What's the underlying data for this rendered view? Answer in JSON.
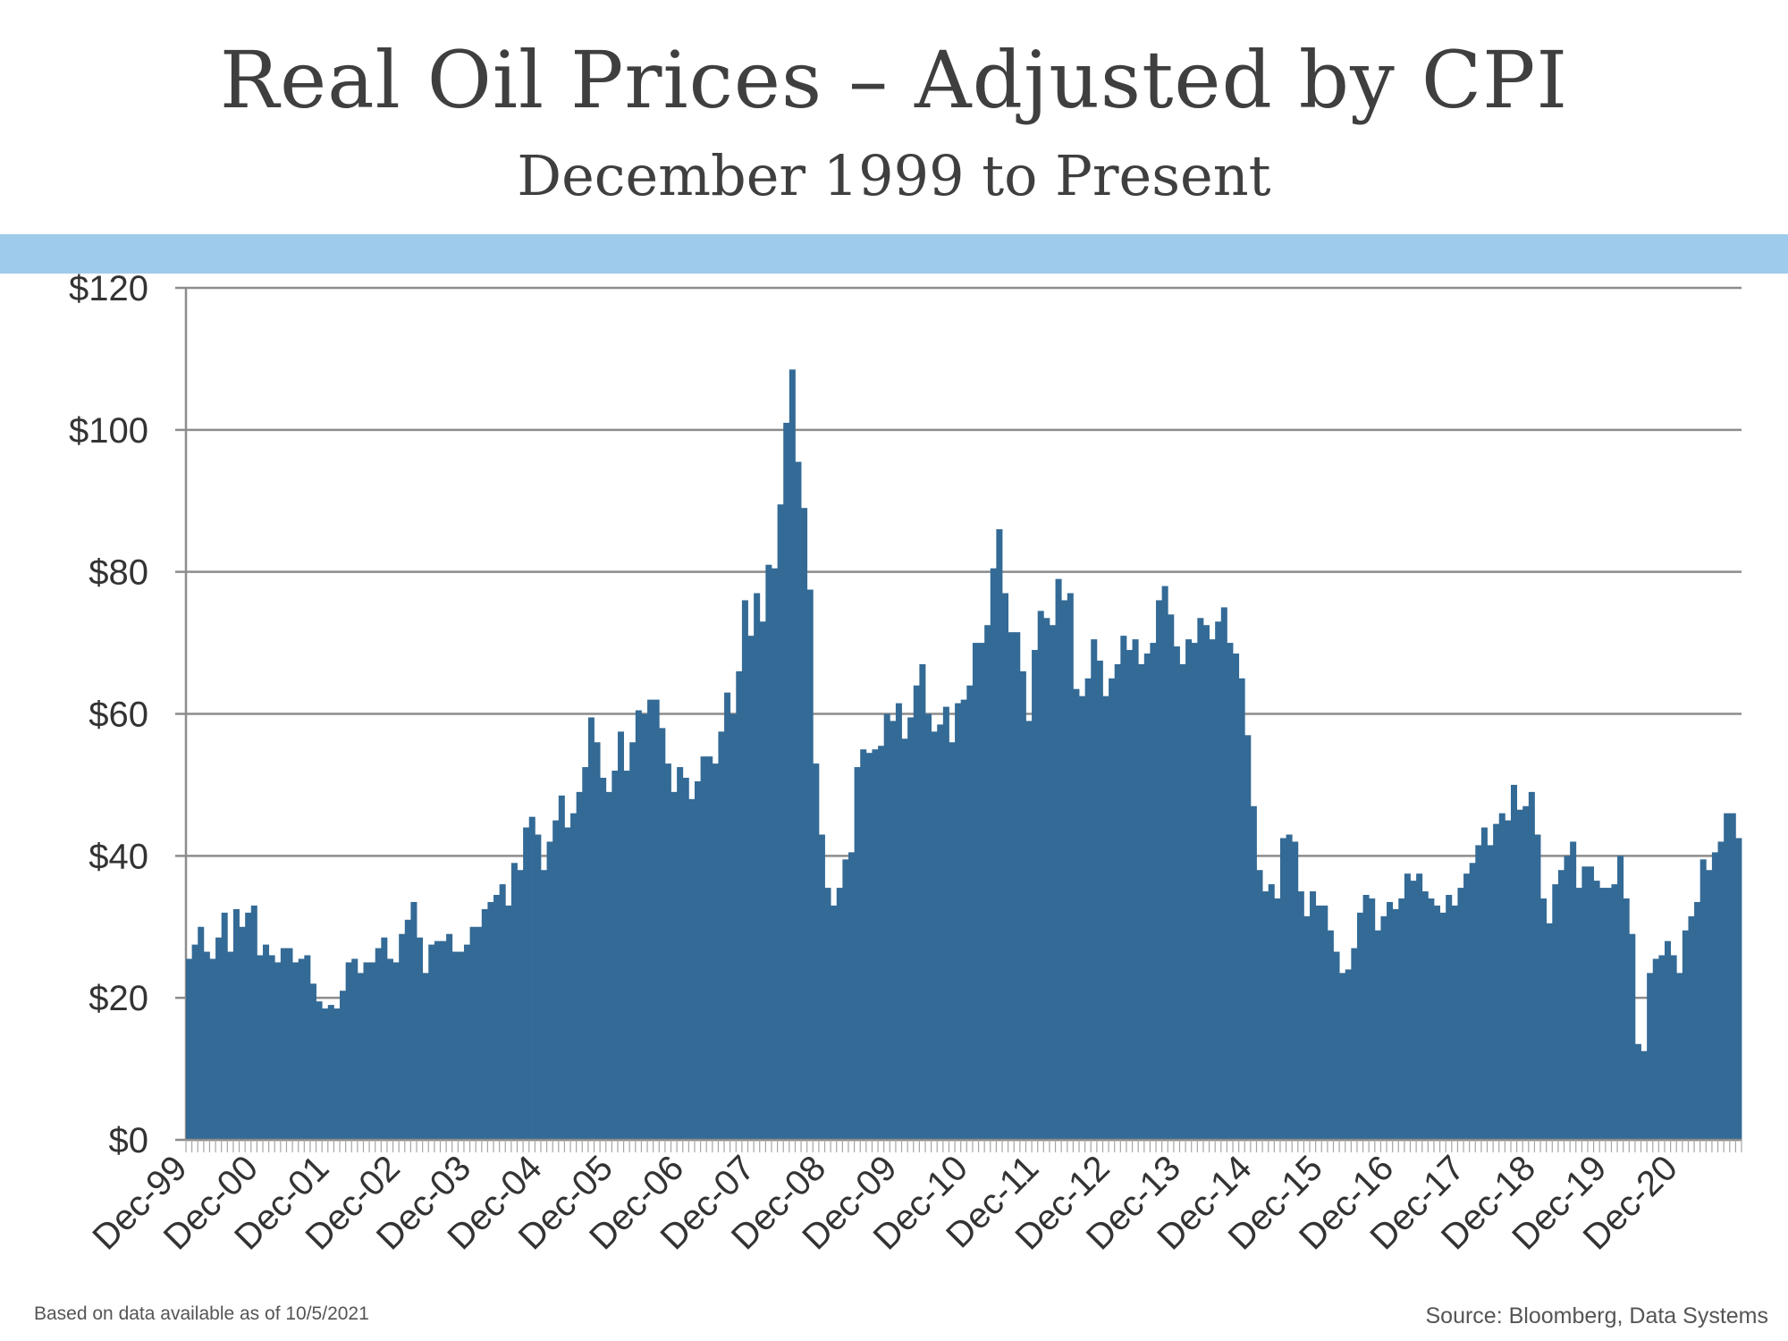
{
  "header": {
    "title": "Real Oil Prices – Adjusted by CPI",
    "subtitle": "December 1999 to Present"
  },
  "footer": {
    "note": "Based on data available as of 10/5/2021",
    "source": "Source:  Bloomberg, Data Systems"
  },
  "colors": {
    "bars": "#336a96",
    "band": "#9ecbeb",
    "grid": "#8c8c8c"
  },
  "chart_data": {
    "type": "bar",
    "title": "Real Oil Prices – Adjusted by CPI",
    "subtitle": "December 1999 to Present",
    "xlabel": "",
    "ylabel": "",
    "ylim": [
      0,
      120
    ],
    "yticks": [
      0,
      20,
      40,
      60,
      80,
      100,
      120
    ],
    "ytick_labels": [
      "$0",
      "$20",
      "$40",
      "$60",
      "$80",
      "$100",
      "$120"
    ],
    "grid": true,
    "legend": "none",
    "xtick_labels": [
      "Dec-99",
      "Dec-00",
      "Dec-01",
      "Dec-02",
      "Dec-03",
      "Dec-04",
      "Dec-05",
      "Dec-06",
      "Dec-07",
      "Dec-08",
      "Dec-09",
      "Dec-10",
      "Dec-11",
      "Dec-12",
      "Dec-13",
      "Dec-14",
      "Dec-15",
      "Dec-16",
      "Dec-17",
      "Dec-18",
      "Dec-19",
      "Dec-20"
    ],
    "series": [
      {
        "frequency": "monthly",
        "start": "Dec-99",
        "values": [
          25.5,
          27.5,
          30,
          26.5,
          25.5,
          28.5,
          32,
          26.5,
          32.5,
          30,
          32,
          33,
          26,
          27.5,
          26,
          25,
          27,
          27,
          25,
          25.5,
          26,
          22,
          19.5,
          18.5,
          19,
          18.5,
          21,
          25,
          25.5,
          23.5,
          25,
          25,
          27,
          28.5,
          25.5,
          25,
          29,
          31,
          33.5,
          28.5,
          23.5,
          27.5,
          28,
          28,
          29,
          26.5,
          26.5,
          27.5,
          30,
          30,
          32.5,
          33.5,
          34.5,
          36,
          33,
          39,
          38,
          44,
          45.5,
          43,
          38,
          42,
          45,
          48.5,
          44,
          46,
          49,
          52.5,
          59.5,
          56,
          51,
          49,
          52,
          57.5,
          52,
          56,
          60.5,
          60,
          62,
          62,
          58,
          53,
          49,
          52.5,
          51,
          48,
          50.5,
          54,
          54,
          53,
          57.5,
          63,
          60,
          66,
          76,
          71,
          77,
          73,
          81,
          80.5,
          89.5,
          101,
          108.5,
          95.5,
          89,
          77.5,
          53,
          43,
          35.5,
          33,
          35.5,
          39.5,
          40.5,
          52.5,
          55,
          54.5,
          55,
          55.5,
          60,
          59,
          61.5,
          56.5,
          59.5,
          64,
          67,
          60,
          57.5,
          58.5,
          61,
          56,
          61.5,
          62,
          64,
          70,
          70,
          72.5,
          80.5,
          86,
          77,
          71.5,
          71.5,
          66,
          59,
          69,
          74.5,
          73.5,
          72.5,
          79,
          76,
          77,
          63.5,
          62.5,
          65,
          70.5,
          67.5,
          62.5,
          65,
          67,
          71,
          69,
          70.5,
          67,
          68.5,
          70,
          76,
          78,
          74,
          69.5,
          67,
          70.5,
          70,
          73.5,
          72.5,
          70.5,
          73,
          75,
          70,
          68.5,
          65,
          57,
          47,
          38,
          35,
          36,
          34,
          42.5,
          43,
          42,
          35,
          31.5,
          35,
          33,
          33,
          29.5,
          26.5,
          23.5,
          24,
          27,
          32,
          34.5,
          34,
          29.5,
          31.5,
          33.5,
          32.5,
          34,
          37.5,
          36.5,
          37.5,
          35,
          34,
          33,
          32,
          34.5,
          33,
          35.5,
          37.5,
          39,
          41.5,
          44,
          41.5,
          44.5,
          46,
          45,
          50,
          46.5,
          47,
          49,
          43,
          34,
          30.5,
          36,
          38,
          40,
          42,
          35.5,
          38.5,
          38.5,
          36.5,
          35.5,
          35.5,
          36,
          40,
          34,
          29,
          13.5,
          12.5,
          23.5,
          25.5,
          26,
          28,
          26,
          23.5,
          29.5,
          31.5,
          33.5,
          39.5,
          38,
          40.5,
          42,
          46,
          46,
          42.5
        ]
      }
    ]
  }
}
